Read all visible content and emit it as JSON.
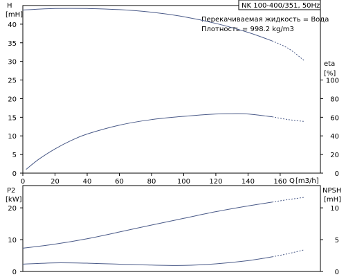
{
  "title": "NK 100-400/351, 50Hz",
  "info": {
    "line1": "Перекачиваемая жидкость = Вода",
    "line2": "Плотность = 998.2 kg/m3"
  },
  "colors": {
    "curve": "#4a5a88",
    "axis": "#000000",
    "background": "#ffffff"
  },
  "top_panel": {
    "left_axis": {
      "name": "H",
      "unit": "[mH]",
      "ticks": [
        "0",
        "5",
        "10",
        "15",
        "20",
        "25",
        "30",
        "35",
        "40"
      ]
    },
    "right_axis": {
      "name": "eta",
      "unit": "[%]",
      "ticks": [
        "0",
        "20",
        "40",
        "60",
        "80",
        "100"
      ]
    },
    "x_axis": {
      "name": "Q",
      "unit": "[m3/h]",
      "ticks": [
        "0",
        "20",
        "40",
        "60",
        "80",
        "100",
        "120",
        "140",
        "160"
      ]
    }
  },
  "bottom_panel": {
    "left_axis": {
      "name": "P2",
      "unit": "[kW]",
      "ticks": [
        "0",
        "10",
        "20"
      ]
    },
    "right_axis": {
      "name": "NPSH",
      "unit": "[mH]",
      "ticks": [
        "0",
        "5",
        "10"
      ]
    }
  },
  "chart_data": [
    {
      "type": "line",
      "panel": "top",
      "xlim": [
        0,
        185
      ],
      "ylim_left": [
        0,
        45
      ],
      "ylim_right": [
        0,
        180
      ],
      "grid": false,
      "x_ticks": [
        0,
        20,
        40,
        60,
        80,
        100,
        120,
        140,
        160
      ],
      "y_left_ticks": [
        0,
        5,
        10,
        15,
        20,
        25,
        30,
        35,
        40
      ],
      "y_right_ticks": [
        0,
        20,
        40,
        60,
        80,
        100
      ],
      "series": [
        {
          "axis": "left",
          "solid": [
            [
              0,
              43.8
            ],
            [
              20,
              44.2
            ],
            [
              40,
              44.2
            ],
            [
              60,
              43.9
            ],
            [
              80,
              43.2
            ],
            [
              100,
              42.0
            ],
            [
              120,
              40.2
            ],
            [
              140,
              37.8
            ],
            [
              155,
              35.5
            ]
          ],
          "dotted": [
            [
              155,
              35.5
            ],
            [
              165,
              33.5
            ],
            [
              175,
              30.2
            ]
          ]
        },
        {
          "axis": "right",
          "solid": [
            [
              2,
              4
            ],
            [
              10,
              15
            ],
            [
              20,
              26
            ],
            [
              30,
              35
            ],
            [
              40,
              42
            ],
            [
              60,
              51.5
            ],
            [
              80,
              57.5
            ],
            [
              100,
              61
            ],
            [
              120,
              63.5
            ],
            [
              130,
              63.8
            ],
            [
              140,
              63.5
            ],
            [
              155,
              60.5
            ]
          ],
          "dotted": [
            [
              155,
              60.5
            ],
            [
              165,
              57.5
            ],
            [
              175,
              55.5
            ]
          ]
        }
      ]
    },
    {
      "type": "line",
      "panel": "bottom",
      "xlim": [
        0,
        185
      ],
      "ylim_left": [
        0,
        27
      ],
      "ylim_right": [
        0,
        13.5
      ],
      "grid": false,
      "y_left_ticks": [
        0,
        10,
        20
      ],
      "y_right_ticks": [
        0,
        5,
        10
      ],
      "series": [
        {
          "axis": "left",
          "solid": [
            [
              0,
              7.3
            ],
            [
              20,
              8.6
            ],
            [
              40,
              10.3
            ],
            [
              60,
              12.4
            ],
            [
              80,
              14.6
            ],
            [
              100,
              16.7
            ],
            [
              120,
              18.8
            ],
            [
              140,
              20.6
            ],
            [
              155,
              21.8
            ]
          ],
          "dotted": [
            [
              155,
              21.8
            ],
            [
              165,
              22.6
            ],
            [
              175,
              23.3
            ]
          ]
        },
        {
          "axis": "right",
          "solid": [
            [
              0,
              1.15
            ],
            [
              20,
              1.35
            ],
            [
              40,
              1.3
            ],
            [
              60,
              1.15
            ],
            [
              80,
              1.0
            ],
            [
              100,
              0.95
            ],
            [
              120,
              1.2
            ],
            [
              140,
              1.7
            ],
            [
              155,
              2.3
            ]
          ],
          "dotted": [
            [
              155,
              2.3
            ],
            [
              165,
              2.8
            ],
            [
              175,
              3.4
            ]
          ]
        }
      ]
    }
  ]
}
